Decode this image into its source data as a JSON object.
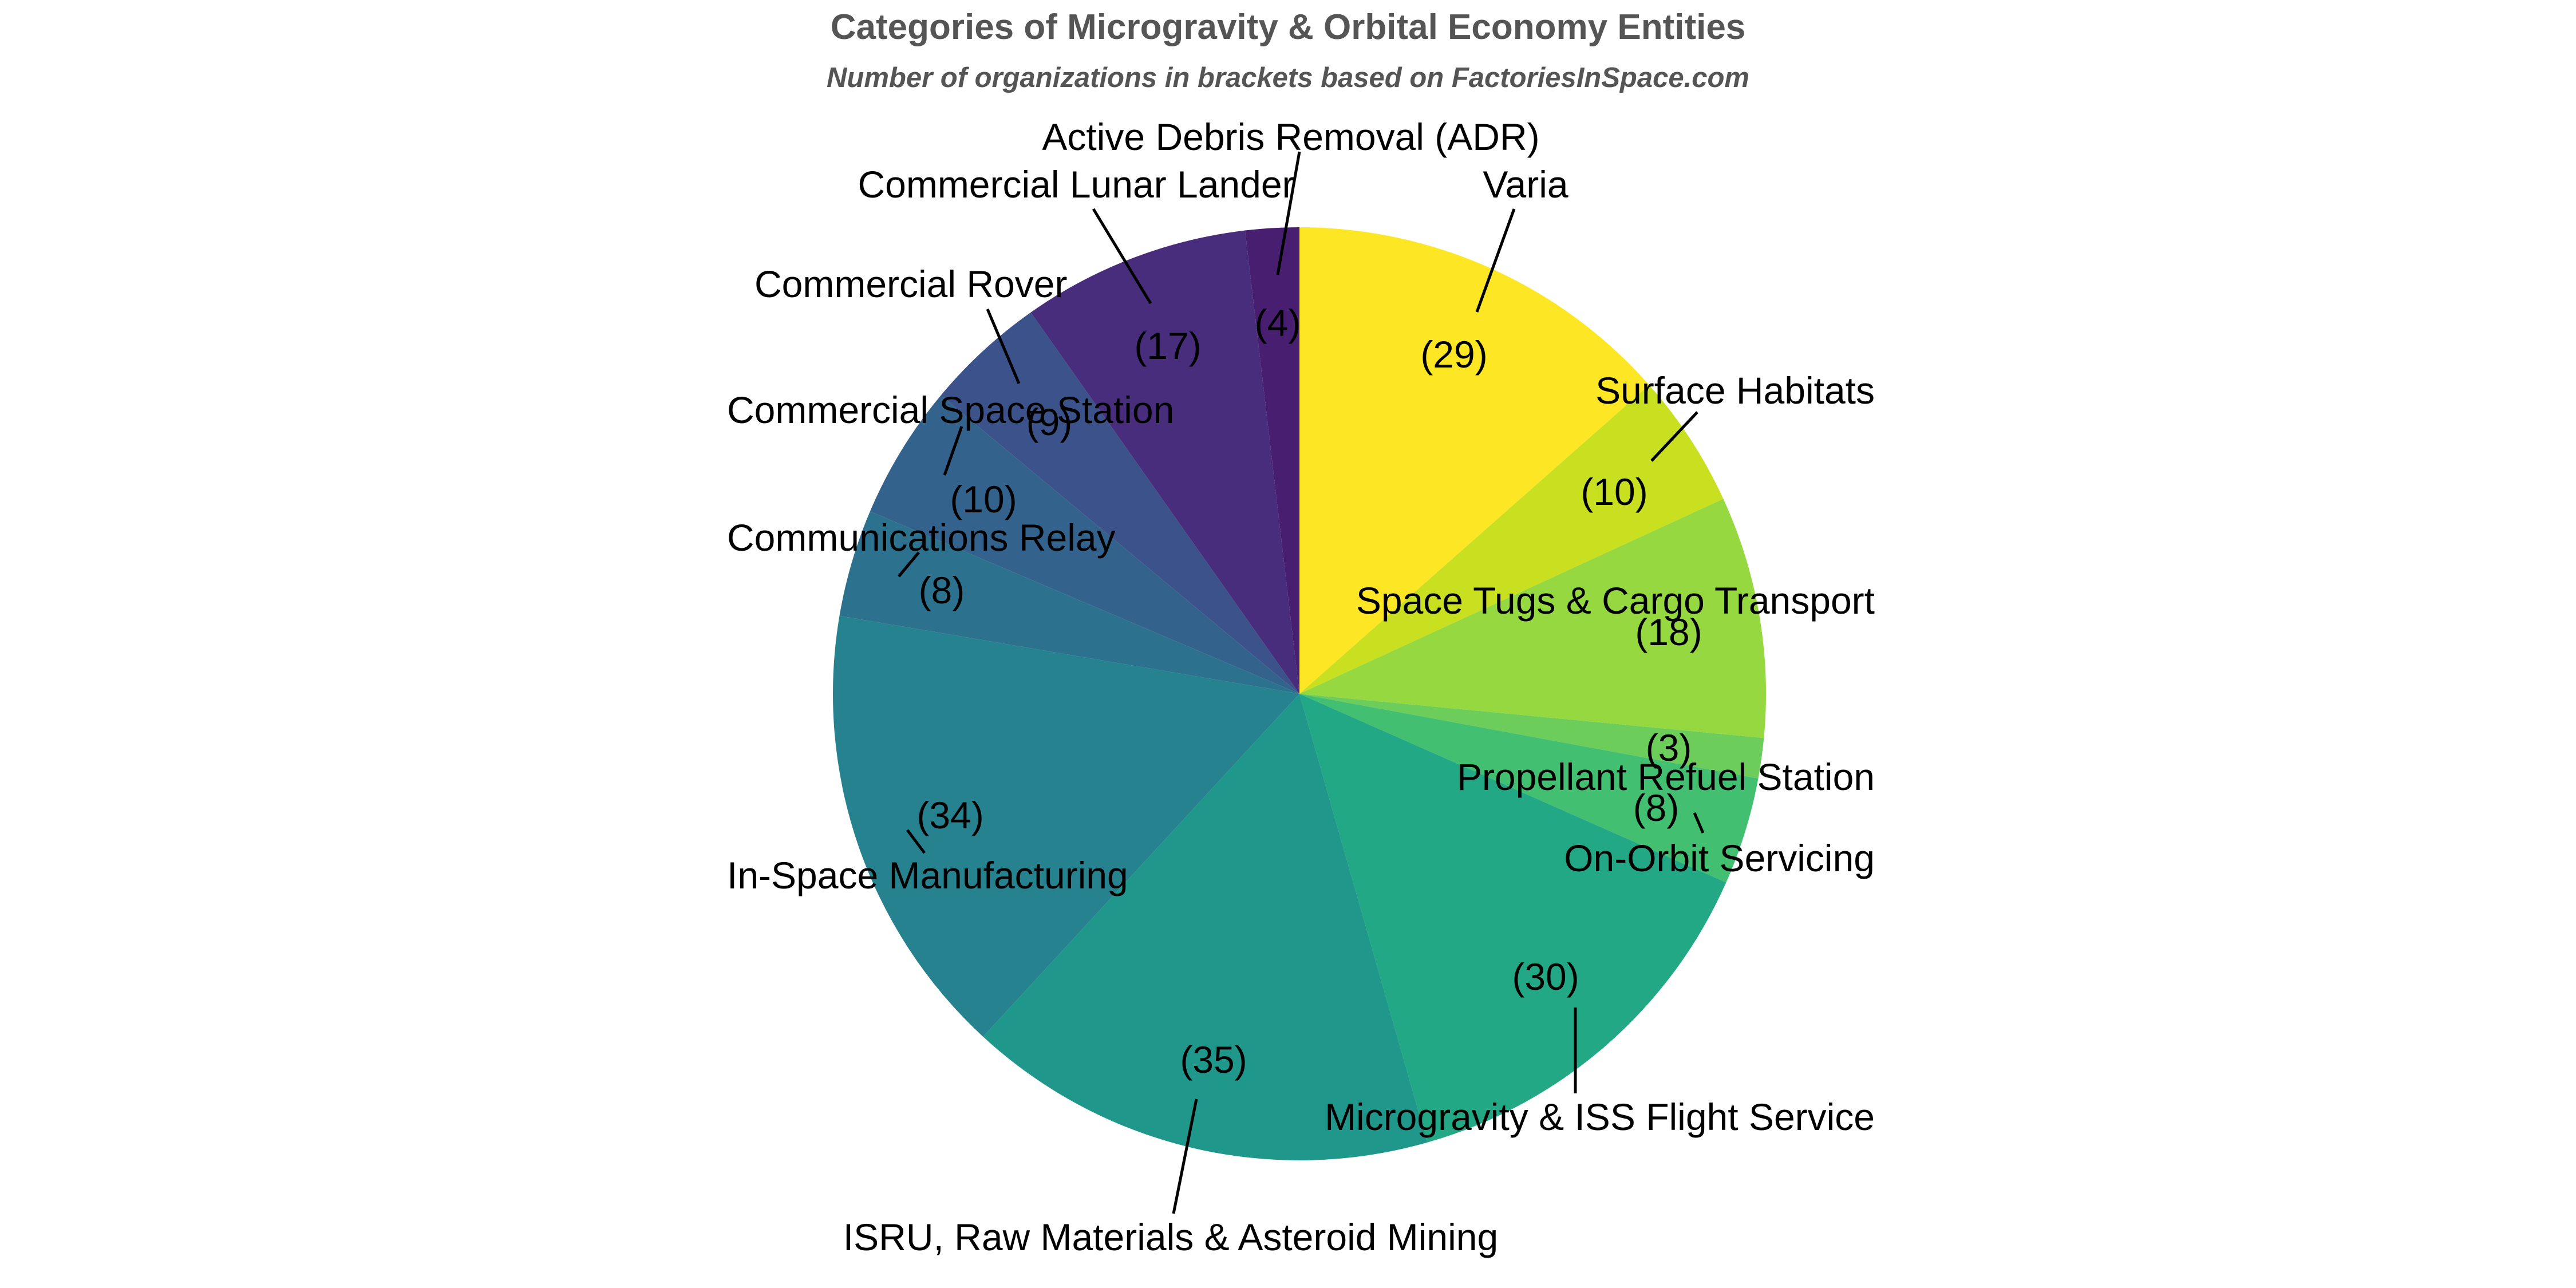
{
  "chart_data": {
    "type": "pie",
    "title": "Categories of Microgravity & Orbital Economy Entities",
    "subtitle": "Number of organizations in brackets based on FactoriesInSpace.com",
    "slices": [
      {
        "label": "Varia",
        "value": 29,
        "value_label": "(29)",
        "color": "#fde725"
      },
      {
        "label": "Surface Habitats",
        "value": 10,
        "value_label": "(10)",
        "color": "#c8e020"
      },
      {
        "label": "Space Tugs & Cargo Transport",
        "value": 18,
        "value_label": "(18)",
        "color": "#95d840"
      },
      {
        "label": "Propellant Refuel Station",
        "value": 3,
        "value_label": "(3)",
        "color": "#6ccd5a"
      },
      {
        "label": "On-Orbit Servicing",
        "value": 8,
        "value_label": "(8)",
        "color": "#43bf71"
      },
      {
        "label": "Microgravity & ISS Flight Service",
        "value": 30,
        "value_label": "(30)",
        "color": "#22a884"
      },
      {
        "label": "ISRU, Raw Materials & Asteroid Mining",
        "value": 35,
        "value_label": "(35)",
        "color": "#1f988b"
      },
      {
        "label": "In-Space Manufacturing",
        "value": 34,
        "value_label": "(34)",
        "color": "#26828e"
      },
      {
        "label": "Communications Relay",
        "value": 8,
        "value_label": "(8)",
        "color": "#2c728e"
      },
      {
        "label": "Commercial Space Station",
        "value": 10,
        "value_label": "(10)",
        "color": "#33638d"
      },
      {
        "label": "Commercial Rover",
        "value": 9,
        "value_label": "(9)",
        "color": "#3b528b"
      },
      {
        "label": "Commercial Lunar Lander",
        "value": 17,
        "value_label": "(17)",
        "color": "#472d7b"
      },
      {
        "label": "Active Debris Removal (ADR)",
        "value": 4,
        "value_label": "(4)",
        "color": "#481f70"
      }
    ]
  }
}
